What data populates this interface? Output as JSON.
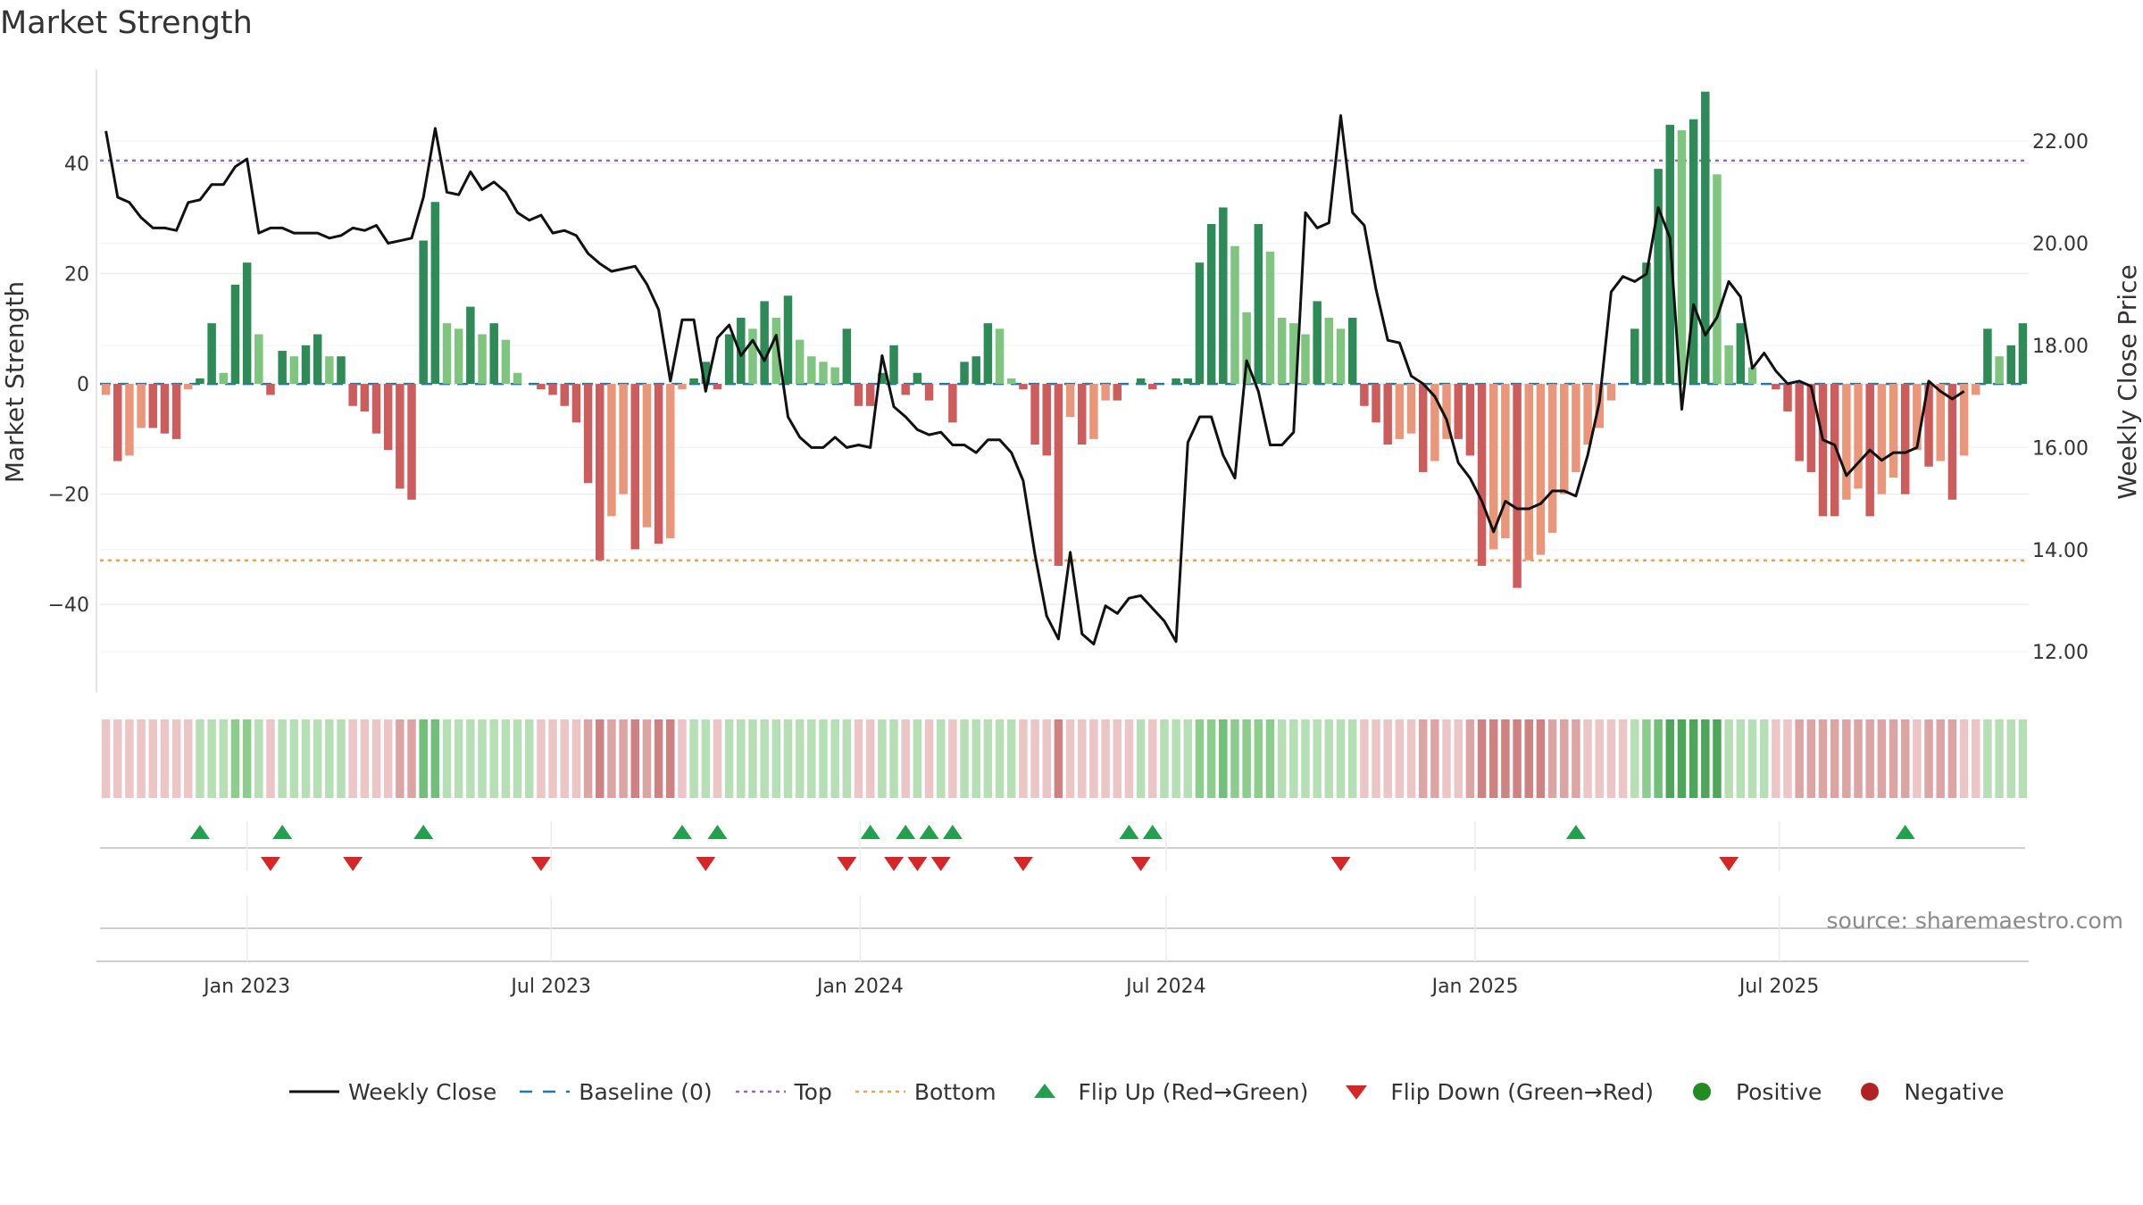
{
  "title": "Market Strength",
  "source_text": "source: sharemaestro.com",
  "colors": {
    "strong_green": "#2e8b57",
    "light_green": "#7fc47f",
    "strong_red": "#cd5c5c",
    "light_red": "#e9967a",
    "line": "#111111",
    "baseline": "#1f77b4",
    "top": "#9467bd",
    "bottom": "#f0a050",
    "flip_up": "#22a04b",
    "flip_down": "#d62728",
    "positive_dot": "#228b22",
    "negative_dot": "#b22222"
  },
  "legend": [
    {
      "key": "weekly_close",
      "label": "Weekly Close",
      "symbol": "line"
    },
    {
      "key": "baseline",
      "label": "Baseline (0)",
      "symbol": "dash"
    },
    {
      "key": "top",
      "label": "Top",
      "symbol": "dot-purple"
    },
    {
      "key": "bottom",
      "label": "Bottom",
      "symbol": "dot-orange"
    },
    {
      "key": "flip_up",
      "label": "Flip Up (Red→Green)",
      "symbol": "tri-up"
    },
    {
      "key": "flip_down",
      "label": "Flip Down (Green→Red)",
      "symbol": "tri-down"
    },
    {
      "key": "positive",
      "label": "Positive",
      "symbol": "dot-green"
    },
    {
      "key": "negative",
      "label": "Negative",
      "symbol": "dot-red"
    }
  ],
  "chart_data": {
    "type": "bar+line",
    "title": "Market Strength",
    "ylabel_left": "Market Strength",
    "ylabel_right": "Weekly Close Price",
    "ylim_left": [
      -56,
      57
    ],
    "ylim_right": [
      11.2,
      23.4
    ],
    "yticks_left": [
      "40",
      "20",
      "0",
      "−20",
      "−40"
    ],
    "yticks_left_values": [
      40,
      20,
      0,
      -20,
      -40
    ],
    "yticks_right": [
      "22.00",
      "20.00",
      "18.00",
      "16.00",
      "14.00",
      "12.00"
    ],
    "yticks_right_values": [
      22,
      20,
      18,
      16,
      14,
      12
    ],
    "x_tick_labels": [
      "Jan 2023",
      "Jul 2023",
      "Jan 2024",
      "Jul 2024",
      "Jan 2025",
      "Jul 2025"
    ],
    "x_tick_dates": [
      "2023-01-01",
      "2023-07-01",
      "2024-01-01",
      "2024-07-01",
      "2025-01-01",
      "2025-07-01"
    ],
    "first_week": "2022-10-09",
    "top_line": 40.5,
    "bottom_line": -32,
    "strength": [
      -2,
      -14,
      -13,
      -8,
      -8,
      -9,
      -10,
      -1,
      1,
      11,
      2,
      18,
      22,
      9,
      -2,
      6,
      5,
      7,
      9,
      5,
      5,
      -4,
      -5,
      -9,
      -12,
      -19,
      -21,
      26,
      33,
      11,
      10,
      14,
      9,
      11,
      8,
      2,
      0,
      -1,
      -2,
      -4,
      -7,
      -18,
      -32,
      -24,
      -20,
      -30,
      -26,
      -29,
      -28,
      -1,
      1,
      4,
      -1,
      9,
      12,
      10,
      15,
      12,
      16,
      8,
      5,
      4,
      3,
      10,
      -4,
      -4,
      2,
      7,
      -2,
      2,
      -3,
      0,
      -7,
      4,
      5,
      11,
      10,
      1,
      -1,
      -11,
      -13,
      -33,
      -6,
      -11,
      -10,
      -3,
      -3,
      0,
      1,
      -1,
      0,
      1,
      1,
      22,
      29,
      32,
      25,
      13,
      29,
      24,
      12,
      11,
      9,
      15,
      12,
      10,
      12,
      -4,
      -7,
      -11,
      -10,
      -9,
      -16,
      -14,
      -10,
      -10,
      -13,
      -33,
      -30,
      -28,
      -37,
      -32,
      -31,
      -27,
      -20,
      -16,
      -11,
      -8,
      -3,
      0,
      10,
      22,
      39,
      47,
      46,
      48,
      53,
      38,
      7,
      11,
      3,
      0,
      -1,
      -5,
      -14,
      -16,
      -24,
      -24,
      -21,
      -19,
      -24,
      -20,
      -17,
      -20,
      -12,
      -15,
      -14,
      -21,
      -13,
      -2,
      10,
      5,
      7,
      11
    ],
    "close": [
      22.2,
      20.9,
      20.8,
      20.5,
      20.3,
      20.3,
      20.25,
      20.8,
      20.85,
      21.15,
      21.15,
      21.5,
      21.65,
      20.2,
      20.3,
      20.3,
      20.2,
      20.2,
      20.2,
      20.1,
      20.15,
      20.3,
      20.25,
      20.35,
      20.0,
      20.05,
      20.1,
      20.9,
      22.25,
      21.0,
      20.95,
      21.4,
      21.05,
      21.2,
      21.0,
      20.6,
      20.45,
      20.55,
      20.2,
      20.25,
      20.15,
      19.8,
      19.6,
      19.45,
      19.5,
      19.55,
      19.2,
      18.7,
      17.3,
      18.5,
      18.5,
      17.1,
      18.15,
      18.4,
      17.8,
      18.1,
      17.7,
      18.2,
      16.6,
      16.2,
      16.0,
      16.0,
      16.2,
      16.0,
      16.05,
      16.0,
      17.8,
      16.8,
      16.6,
      16.35,
      16.25,
      16.3,
      16.05,
      16.05,
      15.9,
      16.15,
      16.15,
      15.9,
      15.35,
      13.9,
      12.7,
      12.25,
      13.95,
      12.35,
      12.15,
      12.9,
      12.75,
      13.05,
      13.1,
      12.85,
      12.6,
      12.2,
      16.1,
      16.6,
      16.6,
      15.85,
      15.4,
      17.7,
      17.1,
      16.05,
      16.05,
      16.3,
      20.6,
      20.3,
      20.4,
      22.5,
      20.6,
      20.35,
      19.1,
      18.1,
      18.05,
      17.4,
      17.25,
      17.0,
      16.55,
      15.7,
      15.4,
      14.95,
      14.35,
      14.95,
      14.8,
      14.8,
      14.9,
      15.15,
      15.15,
      15.05,
      15.85,
      16.9,
      19.05,
      19.35,
      19.25,
      19.4,
      20.7,
      20.1,
      16.75,
      18.8,
      18.2,
      18.55,
      19.25,
      18.95,
      17.55,
      17.85,
      17.5,
      17.25,
      17.3,
      17.2,
      16.15,
      16.05,
      15.45,
      15.7,
      15.95,
      15.75,
      15.9,
      15.9,
      16.0,
      17.3,
      17.1,
      16.95,
      17.1
    ]
  },
  "strength_band": {
    "description_levels": "signed strength per week shown as tinted cells",
    "levels": [
      -1,
      -1,
      -1,
      -1,
      -1,
      -1,
      -1,
      -1,
      1,
      1,
      1,
      2,
      2,
      1,
      -1,
      1,
      1,
      1,
      1,
      1,
      1,
      -1,
      -1,
      -1,
      -1,
      -2,
      -2,
      3,
      3,
      1,
      1,
      1,
      1,
      1,
      1,
      1,
      1,
      -1,
      -1,
      -1,
      -1,
      -2,
      -3,
      -2,
      -2,
      -3,
      -2,
      -3,
      -3,
      -1,
      1,
      1,
      -1,
      1,
      1,
      1,
      1,
      1,
      1,
      1,
      1,
      1,
      1,
      1,
      -1,
      -1,
      1,
      1,
      -1,
      1,
      -1,
      1,
      -1,
      1,
      1,
      1,
      1,
      1,
      -1,
      -1,
      -1,
      -3,
      -1,
      -1,
      -1,
      -1,
      -1,
      -1,
      1,
      -1,
      1,
      1,
      1,
      2,
      2,
      3,
      2,
      2,
      2,
      2,
      1,
      1,
      1,
      1,
      1,
      1,
      1,
      -1,
      -1,
      -1,
      -1,
      -1,
      -2,
      -2,
      -1,
      -1,
      -2,
      -3,
      -3,
      -3,
      -3,
      -3,
      -3,
      -2,
      -2,
      -2,
      -1,
      -1,
      -1,
      -1,
      1,
      2,
      3,
      4,
      4,
      4,
      4,
      4,
      1,
      1,
      1,
      1,
      -1,
      -1,
      -2,
      -2,
      -2,
      -2,
      -2,
      -2,
      -2,
      -2,
      -2,
      -2,
      -1,
      -2,
      -2,
      -2,
      -1,
      -1,
      1,
      1,
      1,
      1
    ]
  },
  "flips": {
    "up_weeks": [
      8,
      15,
      27,
      49,
      52,
      65,
      68,
      70,
      72,
      87,
      89,
      125,
      153
    ],
    "down_weeks": [
      14,
      21,
      37,
      51,
      63,
      67,
      69,
      71,
      78,
      88,
      105,
      138
    ]
  }
}
